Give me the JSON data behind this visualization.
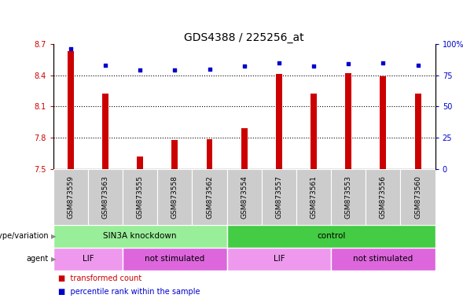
{
  "title": "GDS4388 / 225256_at",
  "samples": [
    "GSM873559",
    "GSM873563",
    "GSM873555",
    "GSM873558",
    "GSM873562",
    "GSM873554",
    "GSM873557",
    "GSM873561",
    "GSM873553",
    "GSM873556",
    "GSM873560"
  ],
  "bar_values": [
    8.63,
    8.22,
    7.62,
    7.78,
    7.79,
    7.89,
    8.41,
    8.22,
    8.42,
    8.39,
    8.22
  ],
  "percentile_values": [
    96,
    83,
    79,
    79,
    80,
    82,
    85,
    82,
    84,
    85,
    83
  ],
  "ylim": [
    7.5,
    8.7
  ],
  "yticks": [
    7.5,
    7.8,
    8.1,
    8.4,
    8.7
  ],
  "right_yticks": [
    0,
    25,
    50,
    75,
    100
  ],
  "bar_color": "#cc0000",
  "dot_color": "#0000cc",
  "bar_width": 0.18,
  "groups": [
    {
      "label": "SIN3A knockdown",
      "start": 0,
      "end": 5,
      "color": "#99ee99"
    },
    {
      "label": "control",
      "start": 5,
      "end": 11,
      "color": "#44cc44"
    }
  ],
  "agents": [
    {
      "label": "LIF",
      "start": 0,
      "end": 2,
      "color": "#ee99ee"
    },
    {
      "label": "not stimulated",
      "start": 2,
      "end": 5,
      "color": "#dd66dd"
    },
    {
      "label": "LIF",
      "start": 5,
      "end": 8,
      "color": "#ee99ee"
    },
    {
      "label": "not stimulated",
      "start": 8,
      "end": 11,
      "color": "#dd66dd"
    }
  ],
  "row_labels": [
    "genotype/variation",
    "agent"
  ],
  "legend_items": [
    {
      "label": "transformed count",
      "color": "#cc0000"
    },
    {
      "label": "percentile rank within the sample",
      "color": "#0000cc"
    }
  ],
  "title_fontsize": 10,
  "axis_label_color_left": "#cc0000",
  "axis_label_color_right": "#0000cc",
  "background_color": "#ffffff",
  "plot_bg_color": "#ffffff",
  "sample_box_color": "#cccccc",
  "grid_color": "#555555"
}
